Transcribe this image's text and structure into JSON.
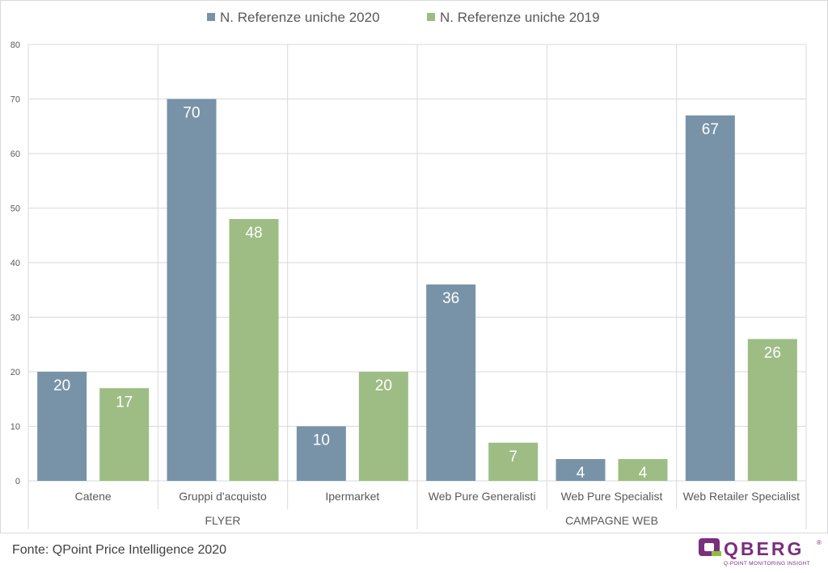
{
  "chart_data": {
    "type": "bar",
    "categories": [
      "Catene",
      "Gruppi d'acquisto",
      "Ipermarket",
      "Web Pure Generalisti",
      "Web Pure Specialist",
      "Web Retailer Specialist"
    ],
    "groups": [
      {
        "label": "FLYER",
        "categories": [
          "Catene",
          "Gruppi d'acquisto",
          "Ipermarket"
        ]
      },
      {
        "label": "CAMPAGNE WEB",
        "categories": [
          "Web Pure Generalisti",
          "Web Pure Specialist",
          "Web Retailer Specialist"
        ]
      }
    ],
    "series": [
      {
        "name": "N. Referenze uniche 2020",
        "color": "#7893a8",
        "values": [
          20,
          70,
          10,
          36,
          4,
          67
        ]
      },
      {
        "name": "N. Referenze uniche 2019",
        "color": "#9dbd84",
        "values": [
          17,
          48,
          20,
          7,
          4,
          26
        ]
      }
    ],
    "ylim": [
      0,
      80
    ],
    "yticks": [
      0,
      10,
      20,
      30,
      40,
      50,
      60,
      70,
      80
    ],
    "grid": true,
    "legend_position": "top-center",
    "data_labels": true
  },
  "source": "Fonte: QPoint Price Intelligence 2020",
  "logo": {
    "text": "QBERG",
    "tagline": "Q-POINT MONITORING INSIGHT",
    "mark": "®"
  },
  "colors": {
    "grid": "#d9d9d9",
    "axis_text": "#595959",
    "logo_primary": "#7a2f7e",
    "logo_accent": "#8dbf3f"
  }
}
